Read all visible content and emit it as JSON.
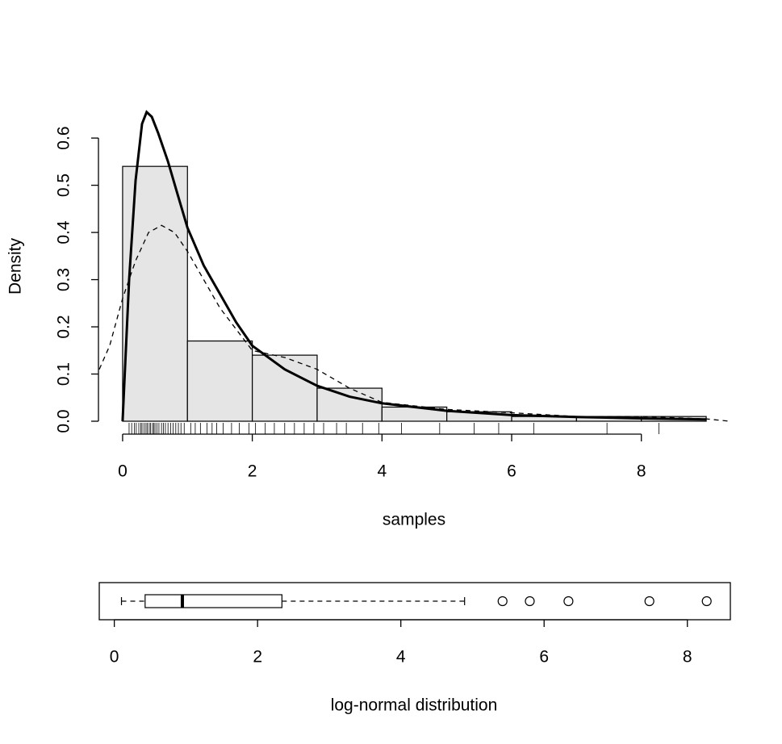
{
  "chart_data": [
    {
      "type": "histogram",
      "xlabel": "samples",
      "ylabel": "Density",
      "bins": [
        0,
        1,
        2,
        3,
        4,
        5,
        6,
        7,
        8,
        9
      ],
      "values": [
        0.54,
        0.17,
        0.14,
        0.07,
        0.03,
        0.02,
        0.01,
        0.01,
        0.01
      ],
      "color": "#e5e5e5",
      "lines": [
        {
          "style": "solid",
          "color": "#000000",
          "x": [
            0,
            0.1,
            0.2,
            0.3,
            0.37,
            0.45,
            0.55,
            0.7,
            0.85,
            1,
            1.25,
            1.5,
            1.75,
            2,
            2.5,
            3,
            3.5,
            4,
            5,
            6,
            7,
            8,
            9
          ],
          "values": [
            0,
            0.3,
            0.51,
            0.63,
            0.655,
            0.645,
            0.61,
            0.55,
            0.48,
            0.41,
            0.33,
            0.27,
            0.21,
            0.16,
            0.11,
            0.075,
            0.052,
            0.038,
            0.022,
            0.013,
            0.009,
            0.006,
            0.004
          ]
        },
        {
          "style": "dashed",
          "color": "#000000",
          "x": [
            -0.36,
            -0.2,
            0,
            0.2,
            0.4,
            0.6,
            0.8,
            1,
            1.25,
            1.5,
            2,
            2.5,
            3,
            3.5,
            4,
            5,
            6,
            7,
            8,
            9,
            9.36
          ],
          "values": [
            0.11,
            0.16,
            0.26,
            0.34,
            0.4,
            0.415,
            0.4,
            0.36,
            0.3,
            0.24,
            0.15,
            0.135,
            0.11,
            0.07,
            0.04,
            0.025,
            0.018,
            0.01,
            0.01,
            0.005,
            0
          ]
        }
      ],
      "rug": [
        0.1,
        0.14,
        0.18,
        0.21,
        0.25,
        0.28,
        0.3,
        0.33,
        0.36,
        0.38,
        0.41,
        0.43,
        0.46,
        0.48,
        0.5,
        0.53,
        0.56,
        0.6,
        0.63,
        0.66,
        0.7,
        0.74,
        0.78,
        0.82,
        0.86,
        0.9,
        0.95,
        1.05,
        1.12,
        1.2,
        1.3,
        1.38,
        1.45,
        1.55,
        1.68,
        1.8,
        1.95,
        2.05,
        2.2,
        2.34,
        2.5,
        2.65,
        2.8,
        2.95,
        3.1,
        3.3,
        3.45,
        3.7,
        3.95,
        4.3,
        4.89,
        5.42,
        5.8,
        6.34,
        7.47,
        8.27
      ],
      "xlim": [
        -0.36,
        9.36
      ],
      "ylim": [
        0,
        0.66
      ],
      "xticks": [
        0,
        2,
        4,
        6,
        8
      ],
      "yticks": [
        {
          "value": 0,
          "label": "0.0"
        },
        0.1,
        0.2,
        0.3,
        0.4,
        0.5,
        0.6
      ]
    },
    {
      "type": "boxplot",
      "xlabel": "log-normal distribution",
      "whisker_low": 0.1,
      "q1": 0.43,
      "median": 0.95,
      "q3": 2.34,
      "whisker_high": 4.89,
      "outliers": [
        5.42,
        5.8,
        6.34,
        7.47,
        8.27
      ],
      "xlim": [
        -0.21,
        8.6
      ],
      "xticks": [
        0,
        2,
        4,
        6,
        8
      ]
    }
  ]
}
